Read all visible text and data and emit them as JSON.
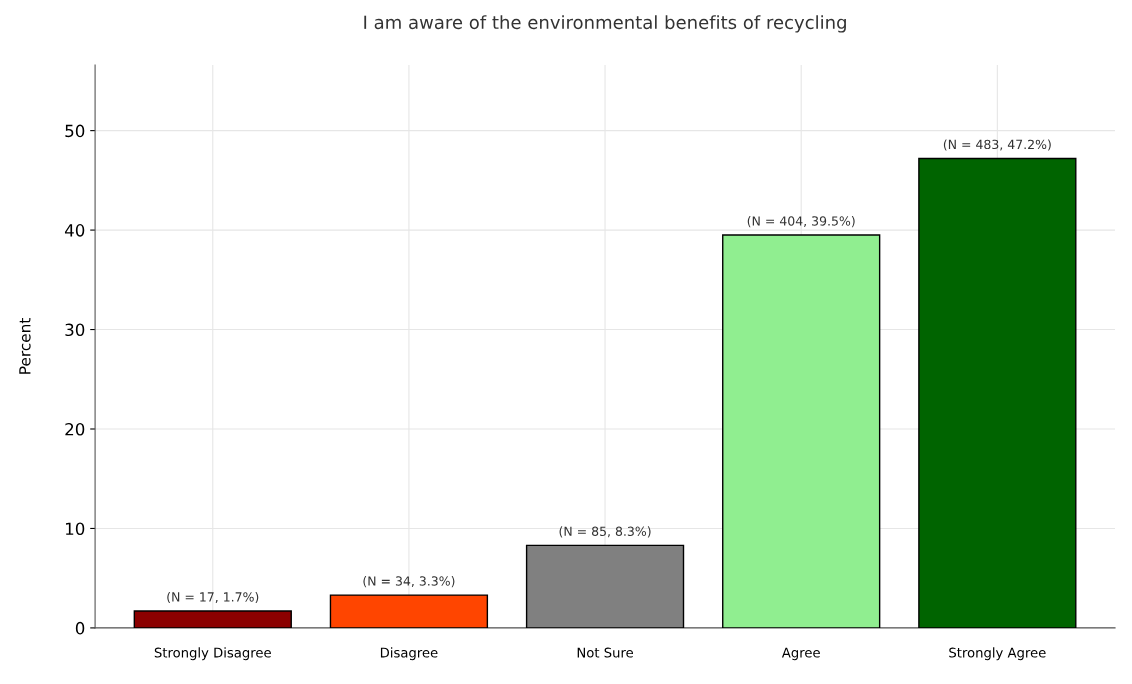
{
  "chart_data": {
    "type": "bar",
    "title": "I am aware of the environmental benefits of recycling",
    "ylabel": "Percent",
    "categories": [
      "Strongly Disagree",
      "Disagree",
      "Not Sure",
      "Agree",
      "Strongly Agree"
    ],
    "values": [
      1.7,
      3.3,
      8.3,
      39.5,
      47.2
    ],
    "colors": [
      "#8b0000",
      "#ff4500",
      "#808080",
      "#90ee90",
      "#006400"
    ],
    "value_labels": [
      "(N = 17, 1.7%)",
      "(N = 34, 3.3%)",
      "(N = 85, 8.3%)",
      "(N = 404, 39.5%)",
      "(N = 483, 47.2%)"
    ],
    "ylim": [
      0,
      56.6
    ],
    "yticks": [
      0,
      10,
      20,
      30,
      40,
      50
    ],
    "grid": true
  }
}
